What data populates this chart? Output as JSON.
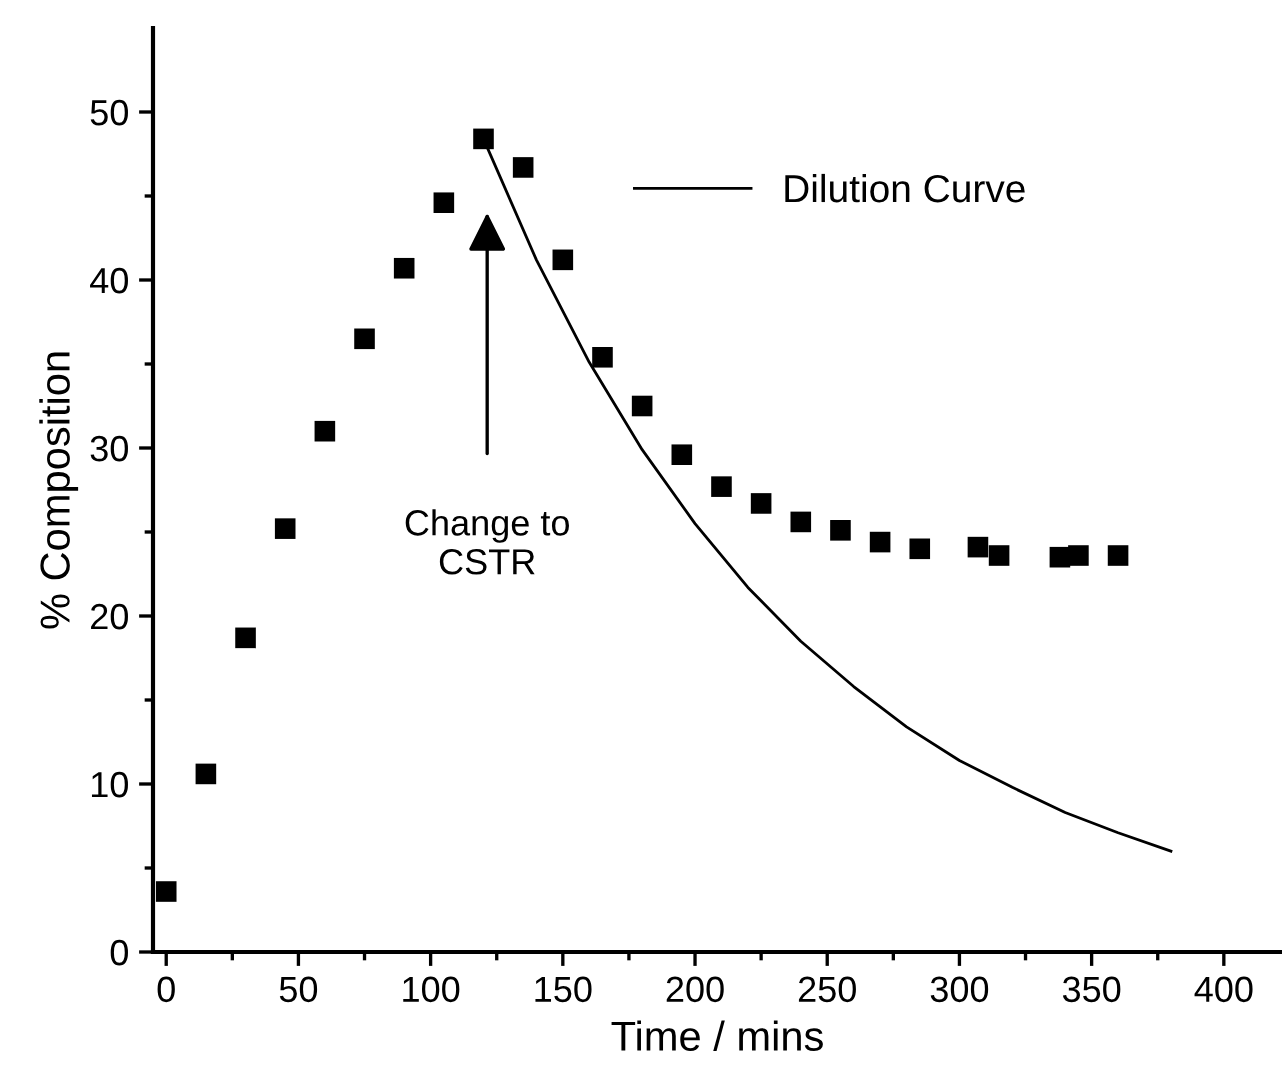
{
  "chart_data": {
    "type": "scatter",
    "xlabel": "Time / mins",
    "ylabel": "% Composition",
    "xlim": [
      -5,
      422
    ],
    "ylim": [
      0,
      55
    ],
    "xticks": [
      0,
      {
        "value": 25,
        "label": null
      },
      50,
      {
        "value": 75,
        "label": null
      },
      100,
      {
        "value": 125,
        "label": null
      },
      150,
      {
        "value": 175,
        "label": null
      },
      200,
      {
        "value": 225,
        "label": null
      },
      250,
      {
        "value": 275,
        "label": null
      },
      300,
      {
        "value": 325,
        "label": null
      },
      350,
      {
        "value": 375,
        "label": null
      },
      400
    ],
    "yticks": [
      0,
      {
        "value": 5,
        "label": null
      },
      10,
      {
        "value": 15,
        "label": null
      },
      20,
      {
        "value": 25,
        "label": null
      },
      30,
      {
        "value": 35,
        "label": null
      },
      40,
      {
        "value": 45,
        "label": null
      },
      50
    ],
    "grid": false,
    "legend": "top",
    "series": [
      {
        "marker": "square",
        "color": "#000000",
        "x": [
          0,
          15,
          30,
          45,
          60,
          75,
          90,
          105,
          120,
          135,
          150,
          165,
          180,
          195,
          210,
          225,
          240,
          255,
          270,
          285,
          307,
          315,
          338,
          345,
          360
        ],
        "values": [
          3.6,
          10.6,
          18.7,
          25.2,
          31.0,
          36.5,
          40.7,
          44.6,
          48.4,
          46.7,
          41.2,
          35.4,
          32.5,
          29.6,
          27.7,
          26.7,
          25.6,
          25.1,
          24.4,
          24.0,
          24.1,
          23.6,
          23.5,
          23.6,
          23.6
        ]
      },
      {
        "type": "line",
        "name": "Dilution Curve",
        "color": "#000000",
        "line_style": "solid",
        "marker": "none",
        "x": [
          120,
          140,
          160,
          180,
          200,
          220,
          240,
          260,
          280,
          300,
          320,
          340,
          360,
          380
        ],
        "values": [
          48.4,
          41.2,
          35.1,
          29.9,
          25.5,
          21.7,
          18.5,
          15.8,
          13.4,
          11.4,
          9.8,
          8.3,
          7.1,
          6.0
        ]
      }
    ],
    "annotations": [
      "Change to\nCSTR"
    ]
  }
}
